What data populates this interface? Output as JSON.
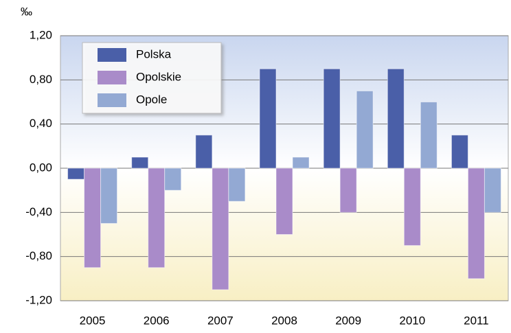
{
  "chart_data": {
    "type": "bar",
    "unit_label": "‰",
    "categories": [
      "2005",
      "2006",
      "2007",
      "2008",
      "2009",
      "2010",
      "2011"
    ],
    "series": [
      {
        "name": "Polska",
        "color": "#4a5fa8",
        "values": [
          -0.1,
          0.1,
          0.3,
          0.9,
          0.9,
          0.9,
          0.3
        ]
      },
      {
        "name": "Opolskie",
        "color": "#a98bc9",
        "values": [
          -0.9,
          -0.9,
          -1.1,
          -0.6,
          -0.4,
          -0.7,
          -1.0
        ]
      },
      {
        "name": "Opole",
        "color": "#93a9d3",
        "values": [
          -0.5,
          -0.2,
          -0.3,
          0.1,
          0.7,
          0.6,
          -0.4
        ]
      }
    ],
    "ylim": [
      -1.2,
      1.2
    ],
    "yticks": [
      {
        "value": -1.2,
        "label": "-1,20"
      },
      {
        "value": -0.8,
        "label": "-0,80"
      },
      {
        "value": -0.4,
        "label": "-0,40"
      },
      {
        "value": 0,
        "label": "0,00"
      },
      {
        "value": 0.4,
        "label": "0,40"
      },
      {
        "value": 0.8,
        "label": "0,80"
      },
      {
        "value": 1.2,
        "label": "1,20"
      }
    ],
    "grid": true,
    "legend": "top-left"
  }
}
